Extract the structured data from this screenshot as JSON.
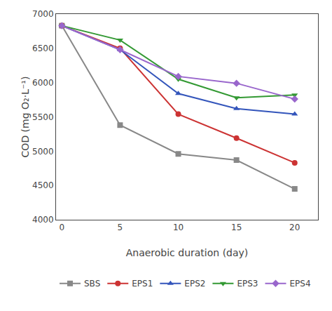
{
  "chart_data": {
    "type": "line",
    "x": [
      0,
      5,
      10,
      15,
      20
    ],
    "series": [
      {
        "name": "SBS",
        "color": "#888888",
        "marker": "square",
        "values": [
          6830,
          5380,
          4960,
          4870,
          4450
        ]
      },
      {
        "name": "EPS1",
        "color": "#cc3333",
        "marker": "circle",
        "values": [
          6830,
          6500,
          5540,
          5190,
          4830
        ]
      },
      {
        "name": "EPS2",
        "color": "#3355bb",
        "marker": "triangle-up",
        "values": [
          6830,
          6480,
          5840,
          5620,
          5540
        ]
      },
      {
        "name": "EPS3",
        "color": "#339933",
        "marker": "triangle-down",
        "values": [
          6830,
          6620,
          6050,
          5780,
          5820
        ]
      },
      {
        "name": "EPS4",
        "color": "#9966cc",
        "marker": "diamond",
        "values": [
          6830,
          6480,
          6090,
          5990,
          5760
        ]
      }
    ],
    "xlabel": "Anaerobic duration (day)",
    "ylabel": "COD (mg O₂·L⁻¹)",
    "xlim": [
      -0.5,
      22
    ],
    "xticks": [
      0,
      5,
      10,
      15,
      20
    ],
    "ylim": [
      4000,
      7000
    ],
    "yticks": [
      4000,
      4500,
      5000,
      5500,
      6000,
      6500,
      7000
    ],
    "grid": false,
    "legend": "bottom"
  }
}
